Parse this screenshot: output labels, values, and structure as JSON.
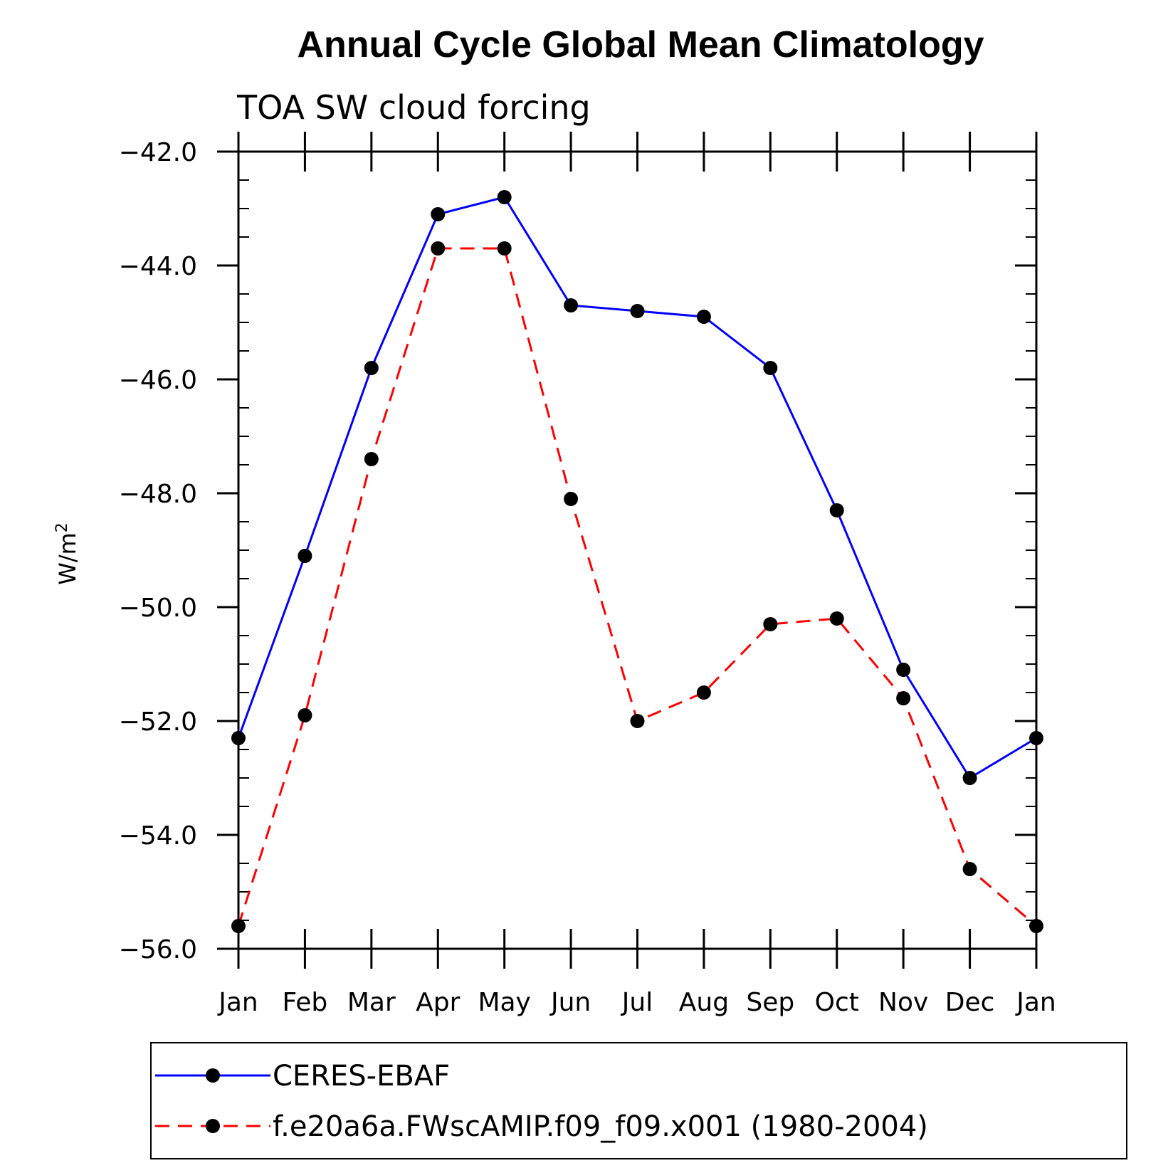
{
  "chart_data": {
    "type": "line",
    "title": "Annual Cycle Global Mean Climatology",
    "subtitle": "TOA SW cloud forcing",
    "xlabel": "",
    "ylabel": "W/m",
    "ylabel_superscript": "2",
    "categories": [
      "Jan",
      "Feb",
      "Mar",
      "Apr",
      "May",
      "Jun",
      "Jul",
      "Aug",
      "Sep",
      "Oct",
      "Nov",
      "Dec",
      "Jan"
    ],
    "ylim": [
      -56.0,
      -42.0
    ],
    "yticks": [
      "-42.0",
      "-44.0",
      "-46.0",
      "-48.0",
      "-50.0",
      "-52.0",
      "-54.0",
      "-56.0"
    ],
    "ytick_values": [
      -42,
      -44,
      -46,
      -48,
      -50,
      -52,
      -54,
      -56
    ],
    "grid": false,
    "legend_position": "bottom",
    "series": [
      {
        "name": "CERES-EBAF",
        "color": "#0000ff",
        "dash": "solid",
        "values": [
          -52.3,
          -49.1,
          -45.8,
          -43.1,
          -42.8,
          -44.7,
          -44.8,
          -44.9,
          -45.8,
          -48.3,
          -51.1,
          -53.0,
          -52.3
        ]
      },
      {
        "name": "f.e20a6a.FWscAMIP.f09_f09.x001 (1980-2004)",
        "color": "#ff0000",
        "dash": "dashed",
        "values": [
          -55.6,
          -51.9,
          -47.4,
          -43.7,
          -43.7,
          -48.1,
          -52.0,
          -51.5,
          -50.3,
          -50.2,
          -51.6,
          -54.6,
          -55.6
        ]
      }
    ]
  }
}
